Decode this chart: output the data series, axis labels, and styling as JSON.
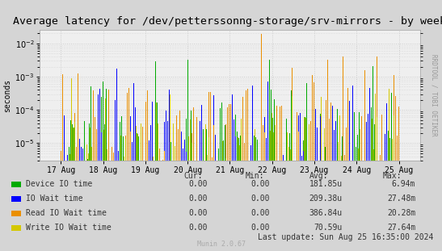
{
  "title": "Average latency for /dev/petterssonng-storage/srv-mirrors - by week",
  "ylabel": "seconds",
  "right_label": "RRDTOOL / TOBI OETIKER",
  "background_color": "#d5d5d5",
  "plot_bg_color": "#efefef",
  "grid_color": "#cccccc",
  "x_labels": [
    "17 Aug",
    "18 Aug",
    "19 Aug",
    "20 Aug",
    "21 Aug",
    "22 Aug",
    "23 Aug",
    "24 Aug",
    "25 Aug"
  ],
  "ylim_min": 3e-06,
  "ylim_max": 0.025,
  "series": [
    {
      "name": "Device IO time",
      "color": "#00aa00",
      "avg": 0.00018185,
      "max": 0.00694,
      "seed": 10
    },
    {
      "name": "IO Wait time",
      "color": "#0000ff",
      "avg": 0.00020938,
      "max": 0.02748,
      "seed": 20
    },
    {
      "name": "Read IO Wait time",
      "color": "#ea8f00",
      "avg": 0.00038684,
      "max": 0.02028,
      "seed": 30
    },
    {
      "name": "Write IO Wait time",
      "color": "#d4c800",
      "avg": 7.059e-05,
      "max": 0.02764,
      "seed": 40
    }
  ],
  "legend_headers": [
    "Cur:",
    "Min:",
    "Avg:",
    "Max:"
  ],
  "legend_cur": [
    "0.00",
    "0.00",
    "0.00",
    "0.00"
  ],
  "legend_min": [
    "0.00",
    "0.00",
    "0.00",
    "0.00"
  ],
  "legend_avg": [
    "181.85u",
    "209.38u",
    "386.84u",
    "70.59u"
  ],
  "legend_max": [
    "6.94m",
    "27.48m",
    "20.28m",
    "27.64m"
  ],
  "footer_text": "Last update: Sun Aug 25 16:35:00 2024",
  "munin_text": "Munin 2.0.67",
  "title_fontsize": 9.5,
  "axis_fontsize": 7,
  "legend_fontsize": 7,
  "n_groups": 200
}
